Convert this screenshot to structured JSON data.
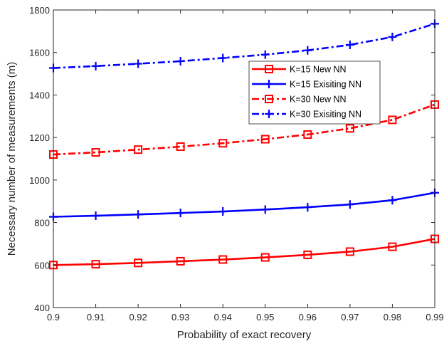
{
  "chart_data": {
    "type": "line",
    "title": "",
    "xlabel": "Probability of exact recovery",
    "ylabel": "Necessary number of measurements (m)",
    "xlim": [
      0.9,
      0.99
    ],
    "ylim": [
      400,
      1800
    ],
    "x": [
      0.9,
      0.91,
      0.92,
      0.93,
      0.94,
      0.95,
      0.96,
      0.97,
      0.98,
      0.99
    ],
    "x_tick_labels": [
      "0.9",
      "0.91",
      "0.92",
      "0.93",
      "0.94",
      "0.95",
      "0.96",
      "0.97",
      "0.98",
      "0.99"
    ],
    "y_ticks": [
      400,
      600,
      800,
      1000,
      1200,
      1400,
      1600,
      1800
    ],
    "y_tick_labels": [
      "400",
      "600",
      "800",
      "1000",
      "1200",
      "1400",
      "1600",
      "1800"
    ],
    "grid": false,
    "legend_position": "right",
    "series": [
      {
        "name": "K=15 New NN",
        "color": "#ff0000",
        "line_style": "solid",
        "marker": "square",
        "values": [
          600,
          604,
          610,
          618,
          626,
          636,
          648,
          663,
          686,
          723
        ]
      },
      {
        "name": "K=15 Exisiting NN",
        "color": "#0000ff",
        "line_style": "solid",
        "marker": "plus",
        "values": [
          827,
          832,
          838,
          845,
          852,
          861,
          872,
          885,
          905,
          940
        ]
      },
      {
        "name": "K=30 New NN",
        "color": "#ff0000",
        "line_style": "dashdot",
        "marker": "square",
        "values": [
          1120,
          1130,
          1143,
          1157,
          1173,
          1192,
          1214,
          1243,
          1283,
          1355
        ]
      },
      {
        "name": "K=30 Exisiting NN",
        "color": "#0000ff",
        "line_style": "dashdot",
        "marker": "plus",
        "values": [
          1527,
          1536,
          1547,
          1559,
          1574,
          1590,
          1610,
          1636,
          1673,
          1735
        ]
      }
    ]
  }
}
